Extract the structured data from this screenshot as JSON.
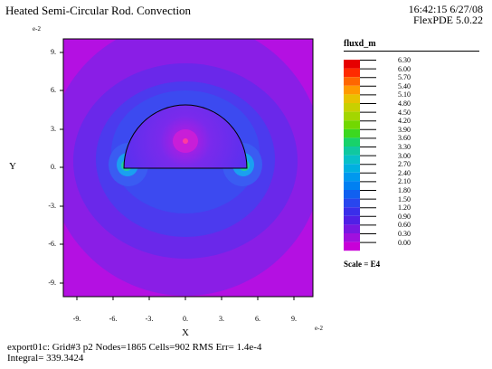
{
  "header": {
    "title": "Heated Semi-Circular Rod. Convection",
    "time": "16:42:15 6/27/08",
    "version": "FlexPDE 5.0.22"
  },
  "plot": {
    "y_exponent": "e-2",
    "x_exponent": "e-2",
    "xlabel": "X",
    "ylabel": "Y",
    "y_ticks": [
      "9.",
      "6.",
      "3.",
      "0.",
      "-3.",
      "-6.",
      "-9."
    ],
    "x_ticks": [
      "-9.",
      "-6.",
      "-3.",
      "0.",
      "3.",
      "6.",
      "9."
    ]
  },
  "legend": {
    "title": "fluxd_m",
    "values": [
      "6.30",
      "6.00",
      "5.70",
      "5.40",
      "5.10",
      "4.80",
      "4.50",
      "4.20",
      "3.90",
      "3.60",
      "3.30",
      "3.00",
      "2.70",
      "2.40",
      "2.10",
      "1.80",
      "1.50",
      "1.20",
      "0.90",
      "0.60",
      "0.30",
      "0.00"
    ],
    "colors": [
      "#e60000",
      "#ff2a00",
      "#ff6600",
      "#ff9a00",
      "#e8c200",
      "#c8d000",
      "#a3d600",
      "#72d800",
      "#3cd820",
      "#18d26a",
      "#10c8a0",
      "#08c0c8",
      "#00b0e0",
      "#0098ee",
      "#0080f2",
      "#1060f0",
      "#2846ee",
      "#3a2eea",
      "#5020e6",
      "#7818e2",
      "#a010de",
      "#c800d8"
    ],
    "scale": "Scale = E4"
  },
  "footer": {
    "line1": "export01c:  Grid#3  p2  Nodes=1865 Cells=902 RMS Err= 1.4e-4",
    "line2": "Integral=  339.3424"
  }
}
